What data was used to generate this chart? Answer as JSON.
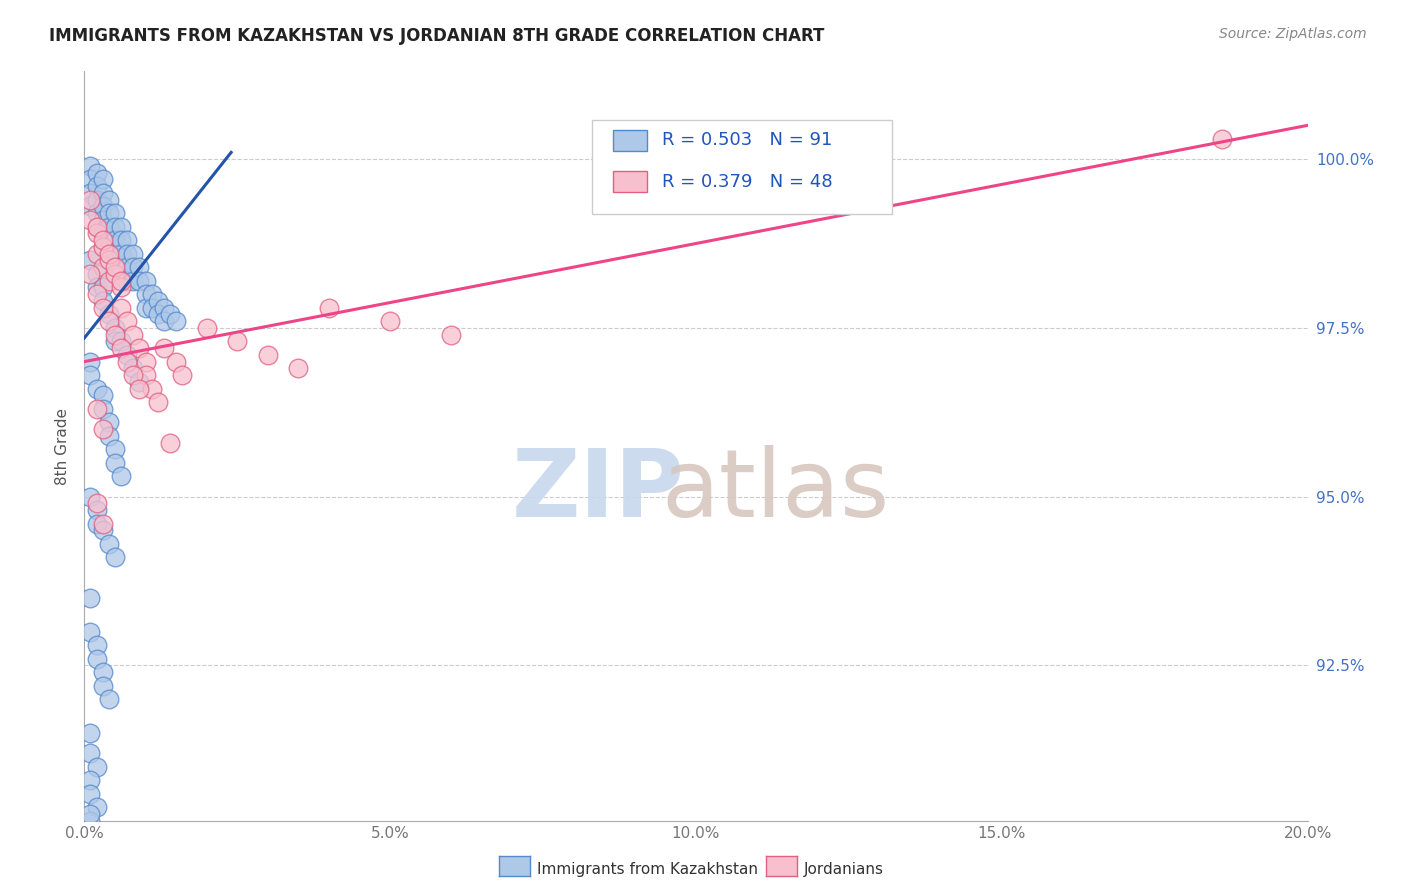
{
  "title": "IMMIGRANTS FROM KAZAKHSTAN VS JORDANIAN 8TH GRADE CORRELATION CHART",
  "source": "Source: ZipAtlas.com",
  "ylabel": "8th Grade",
  "xmin": 0.0,
  "xmax": 0.2,
  "ymin": 90.2,
  "ymax": 101.3,
  "ytick_vals": [
    92.5,
    95.0,
    97.5,
    100.0
  ],
  "ytick_labels": [
    "92.5%",
    "95.0%",
    "97.5%",
    "100.0%"
  ],
  "xtick_vals": [
    0.0,
    0.05,
    0.1,
    0.15,
    0.2
  ],
  "xtick_labels": [
    "0.0%",
    "5.0%",
    "10.0%",
    "15.0%",
    "20.0%"
  ],
  "legend_line1": "R = 0.503   N = 91",
  "legend_line2": "R = 0.379   N = 48",
  "legend_label1": "Immigrants from Kazakhstan",
  "legend_label2": "Jordanians",
  "color_blue_face": "#aec8e8",
  "color_blue_edge": "#5588cc",
  "color_pink_face": "#f8c0ce",
  "color_pink_edge": "#e06080",
  "trendline_blue": "#2255aa",
  "trendline_pink": "#ee4488",
  "blue_trendline_x0": 0.0,
  "blue_trendline_y0": 97.35,
  "blue_trendline_x1": 0.024,
  "blue_trendline_y1": 100.1,
  "pink_trendline_x0": 0.0,
  "pink_trendline_y0": 97.0,
  "pink_trendline_x1": 0.2,
  "pink_trendline_y1": 100.5,
  "blue_x": [
    0.001,
    0.001,
    0.001,
    0.001,
    0.002,
    0.002,
    0.002,
    0.002,
    0.002,
    0.003,
    0.003,
    0.003,
    0.003,
    0.003,
    0.003,
    0.004,
    0.004,
    0.004,
    0.004,
    0.004,
    0.005,
    0.005,
    0.005,
    0.005,
    0.006,
    0.006,
    0.006,
    0.006,
    0.007,
    0.007,
    0.007,
    0.007,
    0.008,
    0.008,
    0.008,
    0.009,
    0.009,
    0.01,
    0.01,
    0.01,
    0.011,
    0.011,
    0.012,
    0.012,
    0.013,
    0.013,
    0.014,
    0.015,
    0.001,
    0.002,
    0.002,
    0.003,
    0.003,
    0.004,
    0.005,
    0.005,
    0.006,
    0.007,
    0.008,
    0.009,
    0.001,
    0.001,
    0.002,
    0.003,
    0.003,
    0.004,
    0.004,
    0.005,
    0.005,
    0.006,
    0.001,
    0.002,
    0.002,
    0.003,
    0.004,
    0.005,
    0.001,
    0.001,
    0.002,
    0.002,
    0.003,
    0.003,
    0.004,
    0.001,
    0.001,
    0.002,
    0.001,
    0.001,
    0.002,
    0.001,
    0.001
  ],
  "blue_y": [
    99.9,
    99.7,
    99.5,
    99.3,
    99.8,
    99.6,
    99.4,
    99.2,
    99.0,
    99.7,
    99.5,
    99.3,
    99.1,
    98.9,
    98.7,
    99.4,
    99.2,
    99.0,
    98.8,
    98.6,
    99.2,
    99.0,
    98.8,
    98.6,
    99.0,
    98.8,
    98.6,
    98.4,
    98.8,
    98.6,
    98.4,
    98.2,
    98.6,
    98.4,
    98.2,
    98.4,
    98.2,
    98.2,
    98.0,
    97.8,
    98.0,
    97.8,
    97.9,
    97.7,
    97.8,
    97.6,
    97.7,
    97.6,
    98.5,
    98.3,
    98.1,
    98.1,
    97.9,
    97.7,
    97.5,
    97.3,
    97.3,
    97.1,
    96.9,
    96.7,
    97.0,
    96.8,
    96.6,
    96.5,
    96.3,
    96.1,
    95.9,
    95.7,
    95.5,
    95.3,
    95.0,
    94.8,
    94.6,
    94.5,
    94.3,
    94.1,
    93.5,
    93.0,
    92.8,
    92.6,
    92.4,
    92.2,
    92.0,
    91.5,
    91.2,
    91.0,
    90.8,
    90.6,
    90.4,
    90.2,
    90.3
  ],
  "pink_x": [
    0.001,
    0.001,
    0.002,
    0.002,
    0.003,
    0.003,
    0.004,
    0.004,
    0.005,
    0.006,
    0.006,
    0.007,
    0.008,
    0.009,
    0.01,
    0.01,
    0.011,
    0.012,
    0.013,
    0.015,
    0.016,
    0.02,
    0.025,
    0.03,
    0.035,
    0.04,
    0.05,
    0.06,
    0.001,
    0.002,
    0.003,
    0.004,
    0.005,
    0.006,
    0.007,
    0.008,
    0.009,
    0.002,
    0.003,
    0.004,
    0.005,
    0.006,
    0.002,
    0.003,
    0.002,
    0.003,
    0.186,
    0.014
  ],
  "pink_y": [
    99.4,
    99.1,
    98.9,
    98.6,
    98.7,
    98.4,
    98.5,
    98.2,
    98.3,
    98.1,
    97.8,
    97.6,
    97.4,
    97.2,
    97.0,
    96.8,
    96.6,
    96.4,
    97.2,
    97.0,
    96.8,
    97.5,
    97.3,
    97.1,
    96.9,
    97.8,
    97.6,
    97.4,
    98.3,
    98.0,
    97.8,
    97.6,
    97.4,
    97.2,
    97.0,
    96.8,
    96.6,
    99.0,
    98.8,
    98.6,
    98.4,
    98.2,
    96.3,
    96.0,
    94.9,
    94.6,
    100.3,
    95.8
  ],
  "watermark_zip_color": "#c8d8ee",
  "watermark_atlas_color": "#d8c8c0"
}
